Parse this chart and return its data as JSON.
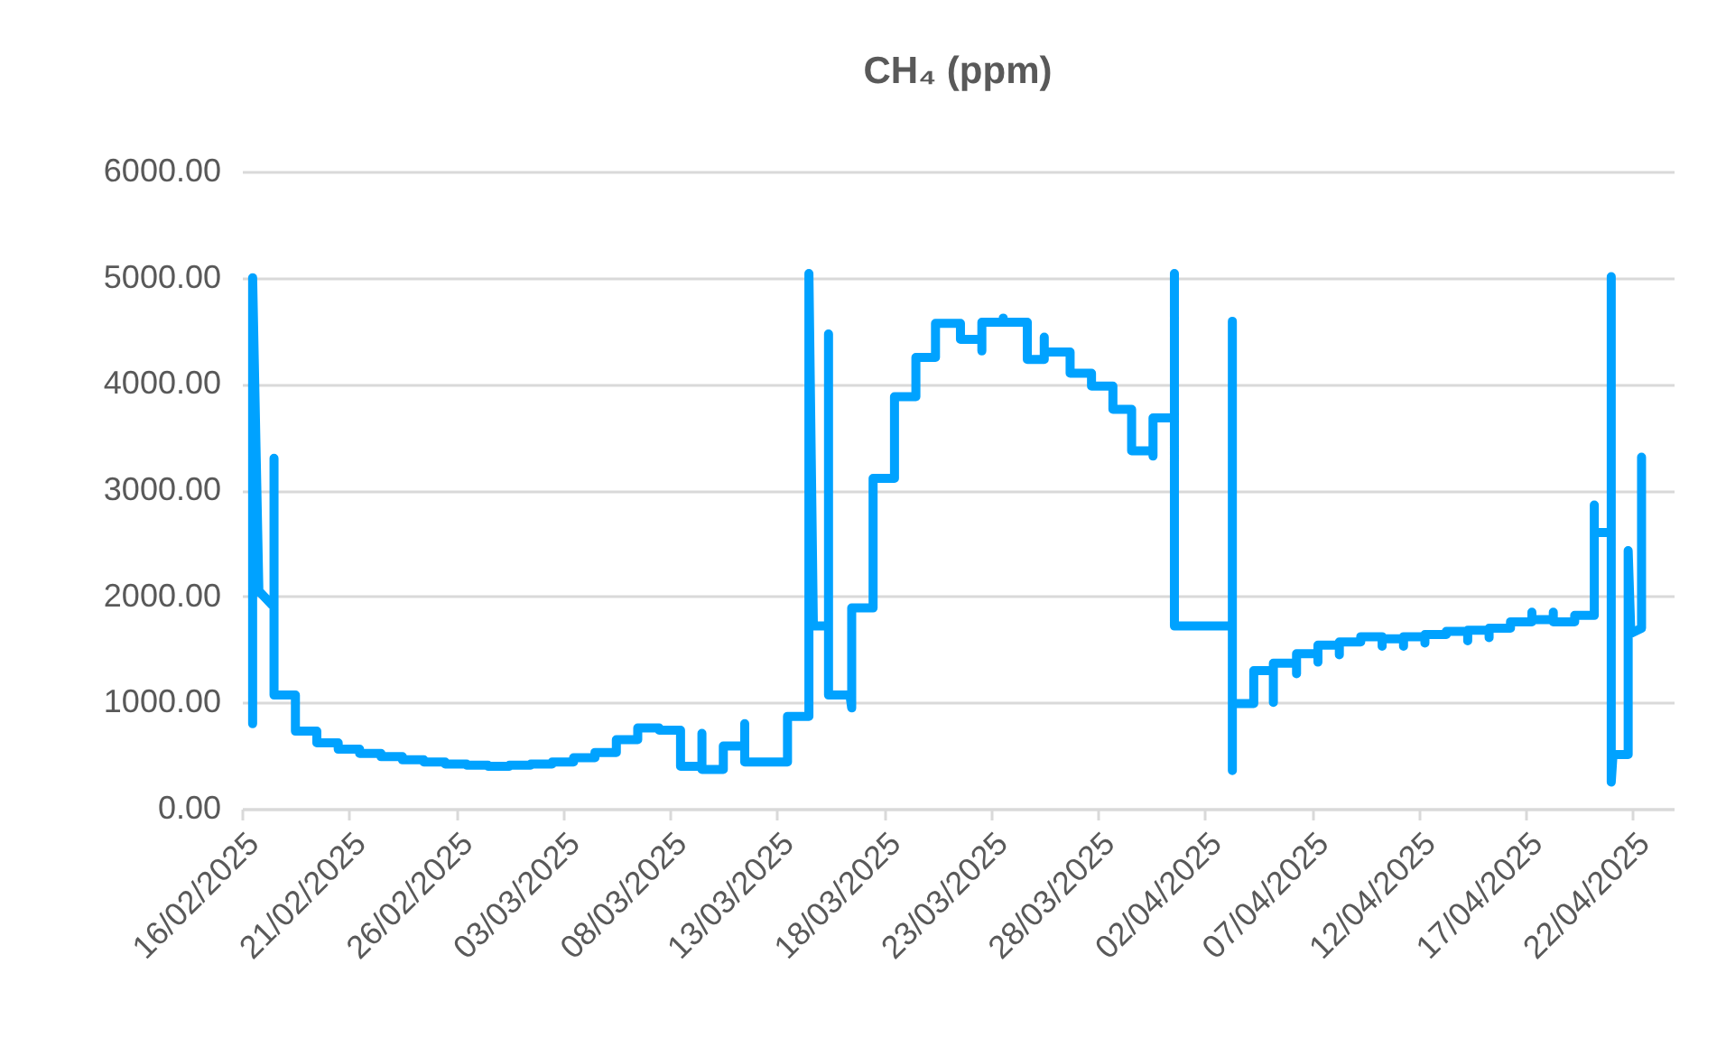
{
  "chart_data": {
    "type": "line",
    "title": "CH₄ (ppm)",
    "xlim": [
      "2025-02-16",
      "2025-04-23T22:00"
    ],
    "xticks": [
      {
        "value": "2025-02-16",
        "label": "16/02/2025"
      },
      {
        "value": "2025-02-21",
        "label": "21/02/2025"
      },
      {
        "value": "2025-02-26",
        "label": "26/02/2025"
      },
      {
        "value": "2025-03-03",
        "label": "03/03/2025"
      },
      {
        "value": "2025-03-08",
        "label": "08/03/2025"
      },
      {
        "value": "2025-03-13",
        "label": "13/03/2025"
      },
      {
        "value": "2025-03-18",
        "label": "18/03/2025"
      },
      {
        "value": "2025-03-23",
        "label": "23/03/2025"
      },
      {
        "value": "2025-03-28",
        "label": "28/03/2025"
      },
      {
        "value": "2025-04-02",
        "label": "02/04/2025"
      },
      {
        "value": "2025-04-07",
        "label": "07/04/2025"
      },
      {
        "value": "2025-04-12",
        "label": "12/04/2025"
      },
      {
        "value": "2025-04-17",
        "label": "17/04/2025"
      },
      {
        "value": "2025-04-22",
        "label": "22/04/2025"
      }
    ],
    "ylim": [
      0,
      6000
    ],
    "yticks": [
      {
        "value": 0,
        "label": "0.00"
      },
      {
        "value": 1000,
        "label": "1000.00"
      },
      {
        "value": 2000,
        "label": "2000.00"
      },
      {
        "value": 3000,
        "label": "3000.00"
      },
      {
        "value": 4000,
        "label": "4000.00"
      },
      {
        "value": 5000,
        "label": "5000.00"
      },
      {
        "value": 6000,
        "label": "6000.00"
      }
    ],
    "grid": "y",
    "legend": false,
    "marker": "none",
    "line_style": "solid",
    "series": [
      {
        "color": "#00a2ff",
        "x": [
          "2025-02-16T12:00",
          "2025-02-16T12:00",
          "2025-02-16T19:00",
          "2025-02-17T12:00",
          "2025-02-17T12:00",
          "2025-02-17T12:00",
          "2025-02-18T12:00",
          "2025-02-18T12:00",
          "2025-02-19T12:00",
          "2025-02-19T12:00",
          "2025-02-20T12:00",
          "2025-02-20T12:00",
          "2025-02-21T12:00",
          "2025-02-21T12:00",
          "2025-02-22T12:00",
          "2025-02-22T12:00",
          "2025-02-23T12:00",
          "2025-02-23T12:00",
          "2025-02-24T12:00",
          "2025-02-24T12:00",
          "2025-02-25T12:00",
          "2025-02-25T12:00",
          "2025-02-26T12:00",
          "2025-02-26T12:00",
          "2025-02-27T12:00",
          "2025-02-27T12:00",
          "2025-02-28T12:00",
          "2025-02-28T12:00",
          "2025-03-01T12:00",
          "2025-03-01T12:00",
          "2025-03-02T12:00",
          "2025-03-02T12:00",
          "2025-03-03T12:00",
          "2025-03-03T12:00",
          "2025-03-04T12:00",
          "2025-03-04T12:00",
          "2025-03-05T12:00",
          "2025-03-05T12:00",
          "2025-03-06T12:00",
          "2025-03-06T12:00",
          "2025-03-07T12:00",
          "2025-03-07T12:00",
          "2025-03-08T12:00",
          "2025-03-08T12:00",
          "2025-03-09T12:00",
          "2025-03-09T12:00",
          "2025-03-09T12:00",
          "2025-03-10T12:00",
          "2025-03-10T12:00",
          "2025-03-11T12:00",
          "2025-03-11T12:00",
          "2025-03-11T12:00",
          "2025-03-13T12:00",
          "2025-03-13T12:00",
          "2025-03-14T12:00",
          "2025-03-14T12:00",
          "2025-03-14T17:00",
          "2025-03-15T10:00",
          "2025-03-15T10:00",
          "2025-03-15T10:00",
          "2025-03-16T10:00",
          "2025-03-16T12:00",
          "2025-03-16T12:00",
          "2025-03-17T12:00",
          "2025-03-17T12:00",
          "2025-03-18T12:00",
          "2025-03-18T12:00",
          "2025-03-19T12:00",
          "2025-03-19T12:00",
          "2025-03-20T10:00",
          "2025-03-20T10:00",
          "2025-03-21T14:00",
          "2025-03-21T14:00",
          "2025-03-22T14:00",
          "2025-03-22T14:00",
          "2025-03-22T14:00",
          "2025-03-23T14:00",
          "2025-03-23T14:00",
          "2025-03-23T14:00",
          "2025-03-24T17:00",
          "2025-03-24T17:00",
          "2025-03-25T12:00",
          "2025-03-25T12:00",
          "2025-03-25T12:00",
          "2025-03-26T17:00",
          "2025-03-26T17:00",
          "2025-03-27T17:00",
          "2025-03-27T17:00",
          "2025-03-28T17:00",
          "2025-03-28T17:00",
          "2025-03-29T14:00",
          "2025-03-29T14:00",
          "2025-03-30T14:00",
          "2025-03-30T14:00",
          "2025-03-30T14:00",
          "2025-03-31T14:00",
          "2025-03-31T14:00",
          "2025-03-31T14:00",
          "2025-04-03T07:00",
          "2025-04-03T07:00",
          "2025-04-03T07:00",
          "2025-04-03T07:00",
          "2025-04-04T07:00",
          "2025-04-04T07:00",
          "2025-04-05T05:00",
          "2025-04-05T05:00",
          "2025-04-05T05:00",
          "2025-04-06T07:00",
          "2025-04-06T07:00",
          "2025-04-06T07:00",
          "2025-04-07T07:00",
          "2025-04-07T07:00",
          "2025-04-07T07:00",
          "2025-04-08T07:00",
          "2025-04-08T07:00",
          "2025-04-08T07:00",
          "2025-04-09T07:00",
          "2025-04-09T07:00",
          "2025-04-10T07:00",
          "2025-04-10T07:00",
          "2025-04-10T07:00",
          "2025-04-11T07:00",
          "2025-04-11T07:00",
          "2025-04-11T07:00",
          "2025-04-12T07:00",
          "2025-04-12T07:00",
          "2025-04-12T07:00",
          "2025-04-13T07:00",
          "2025-04-13T07:00",
          "2025-04-14T07:00",
          "2025-04-14T07:00",
          "2025-04-14T07:00",
          "2025-04-15T07:00",
          "2025-04-15T07:00",
          "2025-04-15T07:00",
          "2025-04-16T07:00",
          "2025-04-16T07:00",
          "2025-04-17T07:00",
          "2025-04-17T07:00",
          "2025-04-17T07:00",
          "2025-04-18T07:00",
          "2025-04-18T07:00",
          "2025-04-18T07:00",
          "2025-04-19T07:00",
          "2025-04-19T07:00",
          "2025-04-20T05:00",
          "2025-04-20T05:00",
          "2025-04-20T05:00",
          "2025-04-21T00:00",
          "2025-04-21T00:00",
          "2025-04-21T00:00",
          "2025-04-21T02:00",
          "2025-04-21T19:00",
          "2025-04-21T19:00",
          "2025-04-21T22:00",
          "2025-04-22T10:00",
          "2025-04-22T10:00"
        ],
        "values": [
          800,
          5000,
          2050,
          1900,
          3300,
          1070,
          1070,
          730,
          730,
          620,
          620,
          560,
          560,
          520,
          520,
          490,
          490,
          460,
          460,
          440,
          440,
          420,
          420,
          410,
          410,
          400,
          400,
          410,
          410,
          420,
          420,
          440,
          440,
          480,
          480,
          530,
          530,
          650,
          650,
          760,
          760,
          740,
          740,
          400,
          400,
          710,
          370,
          370,
          590,
          590,
          800,
          440,
          440,
          870,
          870,
          5040,
          1720,
          1720,
          4470,
          1070,
          1070,
          950,
          1890,
          1890,
          3110,
          3110,
          3880,
          3880,
          4250,
          4250,
          4570,
          4570,
          4420,
          4420,
          4310,
          4580,
          4580,
          4620,
          4580,
          4580,
          4230,
          4230,
          4440,
          4300,
          4300,
          4100,
          4100,
          3980,
          3980,
          3760,
          3760,
          3370,
          3370,
          3320,
          3680,
          3680,
          5040,
          1720,
          1720,
          4590,
          360,
          990,
          990,
          1300,
          1300,
          1000,
          1370,
          1370,
          1270,
          1460,
          1460,
          1380,
          1540,
          1540,
          1450,
          1570,
          1570,
          1620,
          1620,
          1530,
          1600,
          1600,
          1530,
          1620,
          1620,
          1560,
          1640,
          1640,
          1670,
          1670,
          1580,
          1680,
          1680,
          1610,
          1700,
          1700,
          1760,
          1760,
          1850,
          1780,
          1780,
          1850,
          1760,
          1760,
          1820,
          1820,
          2860,
          2600,
          2600,
          5010,
          250,
          510,
          510,
          2430,
          1650,
          1700,
          3310
        ]
      }
    ]
  }
}
